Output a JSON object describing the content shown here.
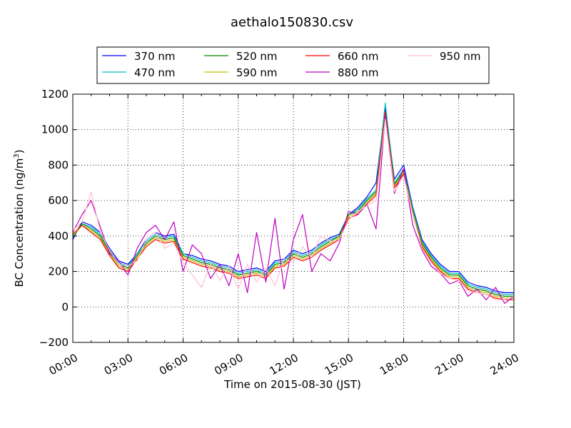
{
  "chart_data": {
    "type": "line",
    "title": "aethalo150830.csv",
    "xlabel": "Time on 2015-08-30 (JST)",
    "ylabel": "BC Concentration (ng/m",
    "ylabel_sup": "3",
    "ylabel_close": ")",
    "x_tick_labels": [
      "00:00",
      "03:00",
      "06:00",
      "09:00",
      "12:00",
      "15:00",
      "18:00",
      "21:00",
      "24:00"
    ],
    "x_tick_hours": [
      0,
      3,
      6,
      9,
      12,
      15,
      18,
      21,
      24
    ],
    "y_tick_labels": [
      "−200",
      "0",
      "200",
      "400",
      "600",
      "800",
      "1000",
      "1200"
    ],
    "y_tick_values": [
      -200,
      0,
      200,
      400,
      600,
      800,
      1000,
      1200
    ],
    "xlim_hours": [
      0,
      24
    ],
    "ylim": [
      -200,
      1200
    ],
    "grid": true,
    "legend_position": "top-center",
    "x_hours": [
      0,
      0.5,
      1,
      1.5,
      2,
      2.5,
      3,
      3.5,
      4,
      4.5,
      5,
      5.5,
      6,
      6.5,
      7,
      7.5,
      8,
      8.5,
      9,
      9.5,
      10,
      10.5,
      11,
      11.5,
      12,
      12.5,
      13,
      13.5,
      14,
      14.5,
      15,
      15.5,
      16,
      16.5,
      17,
      17.5,
      18,
      18.5,
      19,
      19.5,
      20,
      20.5,
      21,
      21.5,
      22,
      22.5,
      23,
      23.5,
      24
    ],
    "series": [
      {
        "name": "370 nm",
        "color": "#0000ff",
        "values": [
          380,
          480,
          460,
          420,
          330,
          260,
          240,
          300,
          380,
          420,
          400,
          410,
          300,
          290,
          270,
          260,
          240,
          230,
          200,
          210,
          220,
          200,
          260,
          270,
          320,
          300,
          320,
          360,
          390,
          410,
          520,
          560,
          620,
          700,
          1120,
          720,
          800,
          560,
          380,
          300,
          240,
          200,
          200,
          140,
          120,
          110,
          90,
          80,
          80
        ]
      },
      {
        "name": "470 nm",
        "color": "#00bfbf",
        "values": [
          390,
          470,
          450,
          410,
          320,
          250,
          230,
          300,
          370,
          410,
          390,
          400,
          300,
          280,
          260,
          250,
          230,
          220,
          190,
          200,
          210,
          190,
          250,
          260,
          310,
          290,
          310,
          350,
          380,
          400,
          520,
          550,
          610,
          660,
          1150,
          700,
          780,
          550,
          370,
          290,
          230,
          190,
          190,
          130,
          110,
          100,
          80,
          70,
          70
        ]
      },
      {
        "name": "520 nm",
        "color": "#008000",
        "values": [
          400,
          470,
          440,
          400,
          310,
          240,
          220,
          290,
          360,
          400,
          380,
          390,
          290,
          270,
          250,
          240,
          220,
          210,
          180,
          190,
          200,
          180,
          240,
          250,
          300,
          280,
          300,
          340,
          370,
          400,
          520,
          540,
          600,
          650,
          1100,
          690,
          770,
          540,
          360,
          280,
          220,
          180,
          180,
          120,
          100,
          90,
          70,
          60,
          60
        ]
      },
      {
        "name": "590 nm",
        "color": "#bfbf00",
        "values": [
          400,
          460,
          430,
          390,
          300,
          230,
          210,
          280,
          350,
          390,
          370,
          380,
          280,
          260,
          240,
          230,
          210,
          200,
          170,
          180,
          190,
          170,
          230,
          240,
          290,
          270,
          290,
          330,
          360,
          390,
          510,
          530,
          590,
          640,
          1080,
          680,
          760,
          530,
          350,
          270,
          210,
          170,
          170,
          110,
          90,
          80,
          60,
          50,
          50
        ]
      },
      {
        "name": "660 nm",
        "color": "#ff0000",
        "values": [
          410,
          460,
          420,
          380,
          290,
          220,
          200,
          270,
          340,
          380,
          360,
          370,
          270,
          250,
          230,
          220,
          200,
          190,
          160,
          170,
          180,
          160,
          220,
          230,
          280,
          260,
          280,
          320,
          350,
          380,
          500,
          520,
          580,
          630,
          1100,
          670,
          750,
          520,
          340,
          260,
          200,
          160,
          160,
          100,
          80,
          70,
          50,
          40,
          40
        ]
      },
      {
        "name": "880 nm",
        "color": "#bf00bf",
        "values": [
          420,
          520,
          600,
          450,
          300,
          260,
          180,
          330,
          420,
          460,
          380,
          480,
          200,
          350,
          300,
          160,
          240,
          120,
          300,
          80,
          420,
          140,
          500,
          100,
          380,
          520,
          200,
          300,
          260,
          360,
          540,
          520,
          580,
          440,
          1080,
          640,
          780,
          460,
          320,
          230,
          190,
          130,
          150,
          60,
          100,
          40,
          110,
          20,
          60
        ]
      },
      {
        "name": "950 nm",
        "color": "#ffc0cb",
        "values": [
          430,
          480,
          650,
          420,
          320,
          240,
          230,
          260,
          380,
          420,
          330,
          360,
          250,
          180,
          110,
          240,
          150,
          230,
          100,
          240,
          140,
          220,
          120,
          270,
          250,
          340,
          280,
          400,
          370,
          380,
          490,
          540,
          570,
          600,
          1060,
          650,
          740,
          520,
          330,
          250,
          190,
          160,
          150,
          90,
          80,
          70,
          40,
          40,
          60
        ]
      }
    ]
  }
}
